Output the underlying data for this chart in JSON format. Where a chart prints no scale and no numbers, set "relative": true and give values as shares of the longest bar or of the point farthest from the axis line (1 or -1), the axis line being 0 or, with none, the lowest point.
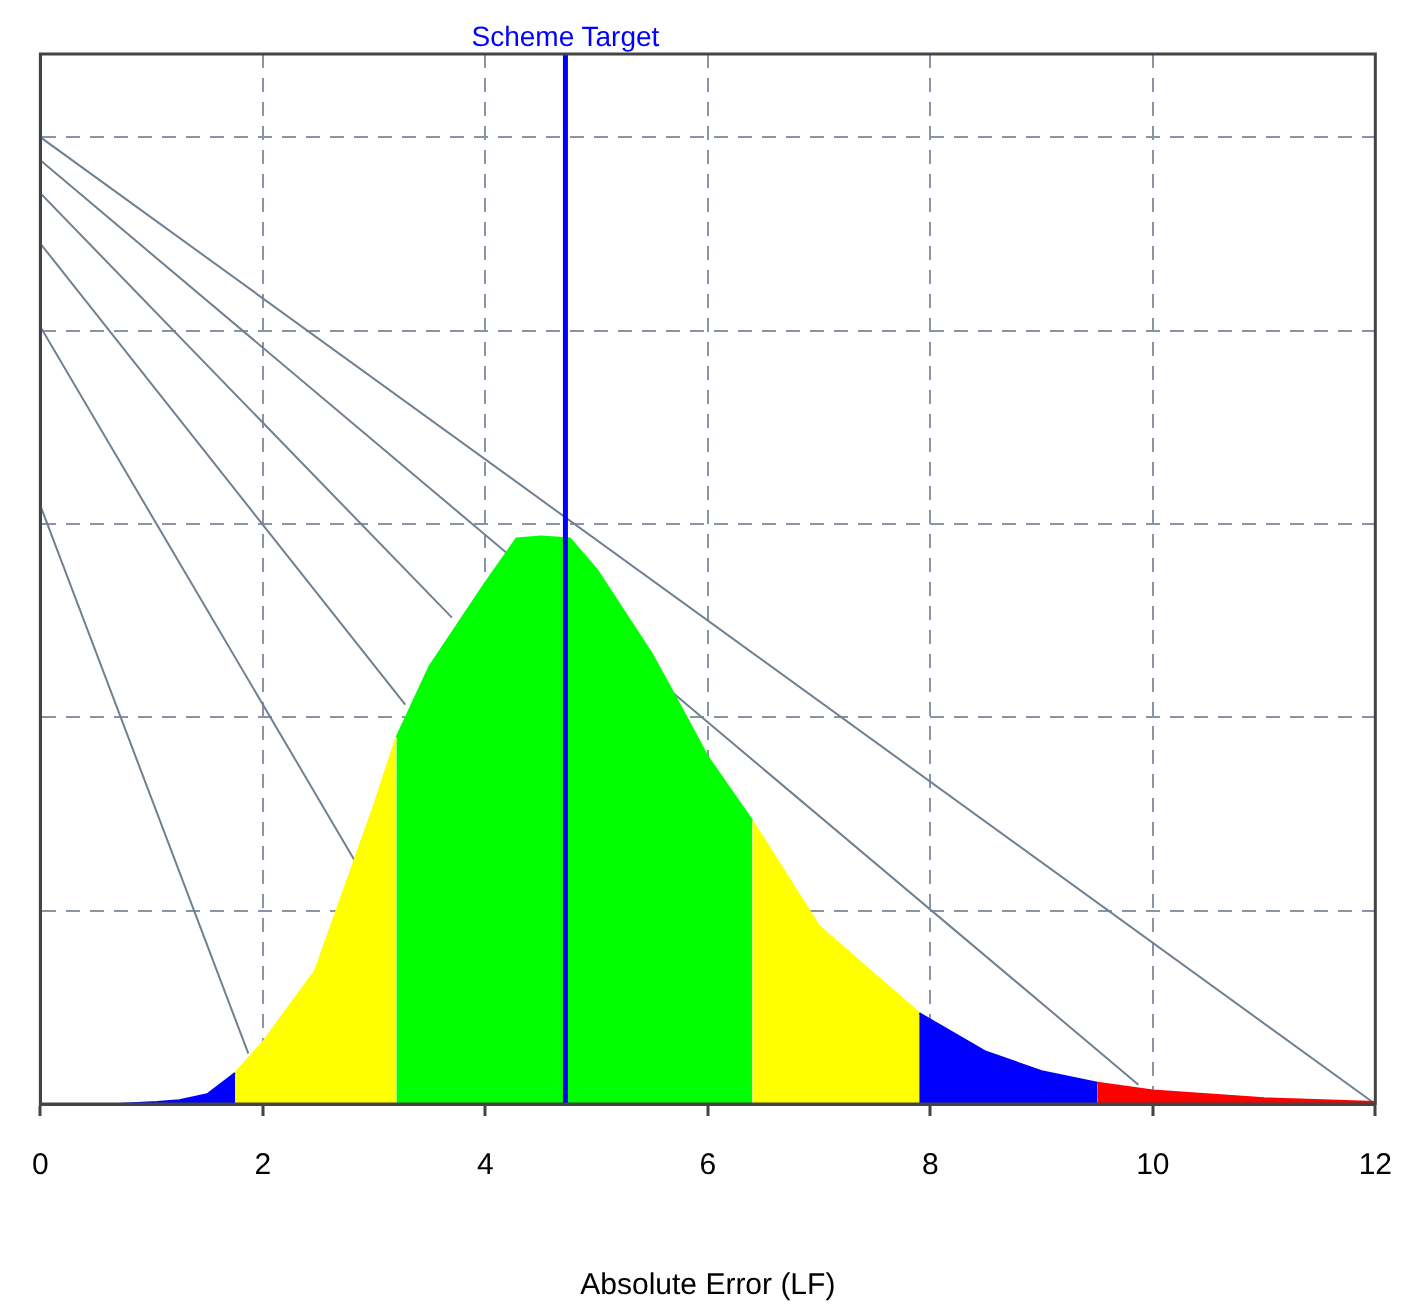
{
  "chart_data": {
    "type": "area",
    "xlabel": "Absolute Error (LF)",
    "relative": true,
    "xlim": [
      0,
      12
    ],
    "xticks": [
      0,
      2,
      4,
      6,
      8,
      10,
      12
    ],
    "grid": true,
    "tick_labels": "x",
    "ref_lines": [
      {
        "axis": "x",
        "value": 4.72,
        "label": "Scheme Target",
        "color": "#0000ff"
      }
    ],
    "series": [
      {
        "type": "line",
        "color": "#708090",
        "x": [
          0,
          12
        ],
        "values": [
          1,
          0
        ]
      },
      {
        "type": "line",
        "color": "#708090",
        "x": [
          0,
          9.87
        ],
        "values": [
          0.976,
          0.02
        ]
      },
      {
        "type": "line",
        "color": "#708090",
        "x": [
          0,
          3.7
        ],
        "values": [
          0.942,
          0.503
        ]
      },
      {
        "type": "line",
        "color": "#708090",
        "x": [
          0,
          3.28
        ],
        "values": [
          0.89,
          0.413
        ]
      },
      {
        "type": "line",
        "color": "#708090",
        "x": [
          0,
          2.82
        ],
        "values": [
          0.804,
          0.253
        ]
      },
      {
        "type": "line",
        "color": "#708090",
        "x": [
          0,
          1.87
        ],
        "values": [
          0.619,
          0.052
        ]
      },
      {
        "color": "#0000ff",
        "x": [
          0.7,
          1.05,
          1.25,
          1.5,
          1.75
        ],
        "values": [
          0,
          0.002,
          0.004,
          0.01,
          0.032
        ]
      },
      {
        "color": "#ffff00",
        "x": [
          1.75,
          2.0,
          2.47,
          3.0,
          3.2
        ],
        "values": [
          0.032,
          0.064,
          0.138,
          0.309,
          0.379
        ]
      },
      {
        "color": "#00ff00",
        "x": [
          3.2,
          3.5,
          4.0,
          4.28,
          4.5,
          4.76,
          5.0,
          5.5,
          5.7,
          6.0,
          6.4
        ],
        "values": [
          0.379,
          0.453,
          0.539,
          0.585,
          0.587,
          0.585,
          0.553,
          0.465,
          0.423,
          0.359,
          0.293
        ]
      },
      {
        "color": "#ffff00",
        "x": [
          6.4,
          7.0,
          7.5,
          7.9
        ],
        "values": [
          0.293,
          0.184,
          0.134,
          0.094
        ]
      },
      {
        "color": "#0000ff",
        "x": [
          7.9,
          8.5,
          9.0,
          9.5
        ],
        "values": [
          0.094,
          0.054,
          0.034,
          0.022
        ]
      },
      {
        "color": "#ff0000",
        "x": [
          9.5,
          10.0,
          11.0,
          12.0
        ],
        "values": [
          0.022,
          0.014,
          0.006,
          0.002
        ]
      }
    ]
  }
}
